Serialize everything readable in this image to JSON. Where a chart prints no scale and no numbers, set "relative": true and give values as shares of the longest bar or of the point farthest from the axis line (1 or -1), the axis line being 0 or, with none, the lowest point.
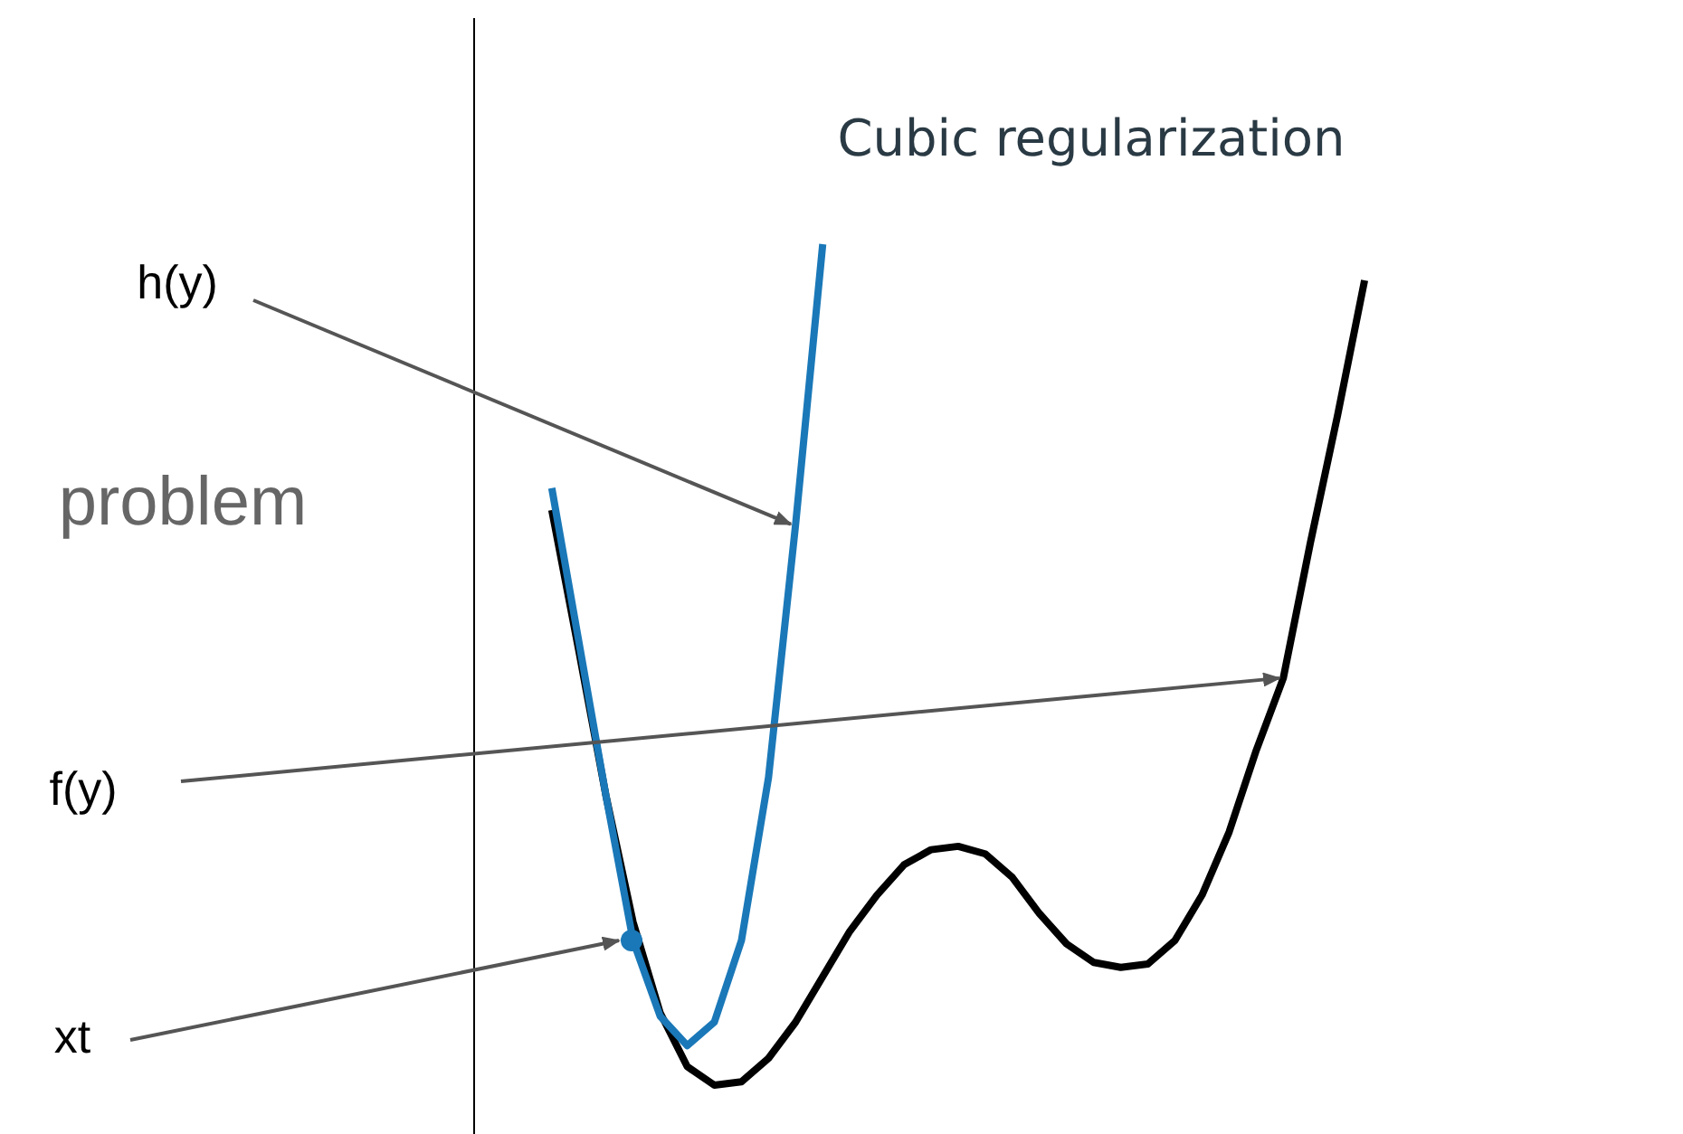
{
  "chart_data": {
    "type": "line",
    "title": "Cubic regularization",
    "relative": true,
    "categories": [
      null,
      null,
      null,
      null,
      null,
      null,
      null,
      null,
      null,
      null,
      null,
      null,
      null,
      null,
      null,
      null,
      null,
      null,
      null,
      null,
      null,
      null,
      null,
      null,
      null,
      null,
      null,
      null,
      null,
      null,
      null
    ],
    "series": [
      {
        "color": "#000000",
        "values": [
          0.684,
          0.516,
          0.344,
          0.194,
          0.086,
          0.022,
          0,
          0.004,
          0.032,
          0.075,
          0.129,
          0.183,
          0.226,
          0.262,
          0.28,
          0.284,
          0.275,
          0.247,
          0.204,
          0.168,
          0.146,
          0.14,
          0.144,
          0.172,
          0.226,
          0.301,
          0.398,
          0.484,
          0.645,
          0.796,
          0.957
        ]
      },
      {
        "color": "#1a78b8",
        "values": [
          0.71,
          0.527,
          0.344,
          0.172,
          0.082,
          0.047,
          0.075,
          0.172,
          0.366,
          0.667,
          1.0,
          null,
          null,
          null,
          null,
          null,
          null,
          null,
          null,
          null,
          null,
          null,
          null,
          null,
          null,
          null,
          null,
          null,
          null,
          null,
          null
        ]
      }
    ],
    "annotations": [
      "h(y)",
      "problem",
      "f(y)",
      "xt"
    ]
  }
}
